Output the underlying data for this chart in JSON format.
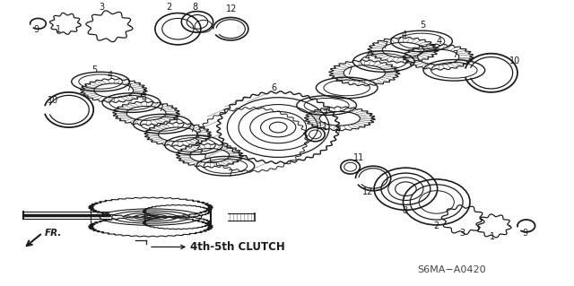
{
  "background_color": "#ffffff",
  "line_color": "#1a1a1a",
  "diagram_code": "S6MA−A0420",
  "label_4th5th": "4th-5th CLUTCH",
  "fr_label": "FR.",
  "fig_width": 6.4,
  "fig_height": 3.19,
  "dpi": 100
}
